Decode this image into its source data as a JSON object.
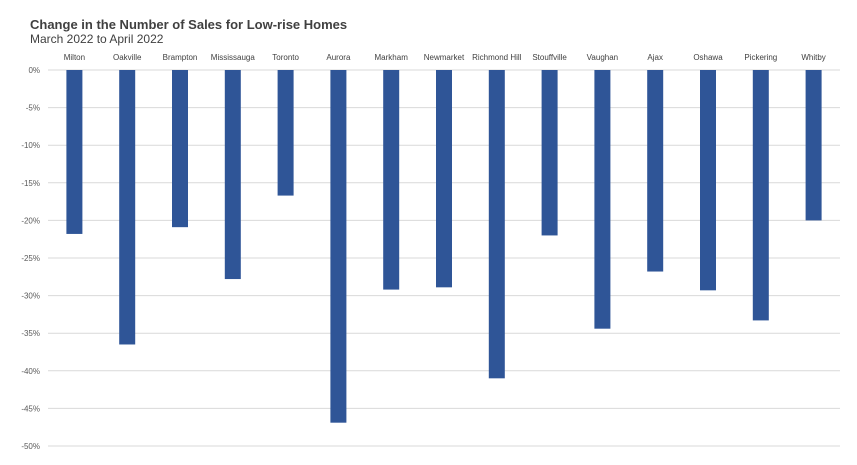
{
  "chart_data": {
    "type": "bar",
    "title": "Change in the Number of Sales for Low-rise Homes",
    "subtitle": "March 2022 to April 2022",
    "xlabel": "",
    "ylabel": "",
    "categories": [
      "Milton",
      "Oakville",
      "Brampton",
      "Mississauga",
      "Toronto",
      "Aurora",
      "Markham",
      "Newmarket",
      "Richmond Hill",
      "Stouffville",
      "Vaughan",
      "Ajax",
      "Oshawa",
      "Pickering",
      "Whitby"
    ],
    "values": [
      -21.8,
      -36.5,
      -20.9,
      -27.8,
      -16.7,
      -46.9,
      -29.2,
      -28.9,
      -41.0,
      -22.0,
      -34.4,
      -26.8,
      -29.3,
      -33.3,
      -20.0
    ],
    "ylim": [
      -50,
      0
    ],
    "yticks": [
      0,
      -5,
      -10,
      -15,
      -20,
      -25,
      -30,
      -35,
      -40,
      -45,
      -50
    ],
    "ytick_labels": [
      "0%",
      "-5%",
      "-10%",
      "-15%",
      "-20%",
      "-25%",
      "-30%",
      "-35%",
      "-40%",
      "-45%",
      "-50%"
    ],
    "grid": true,
    "legend": "none",
    "bar_color": "#2F5597",
    "grid_color": "#D9D9D9"
  }
}
